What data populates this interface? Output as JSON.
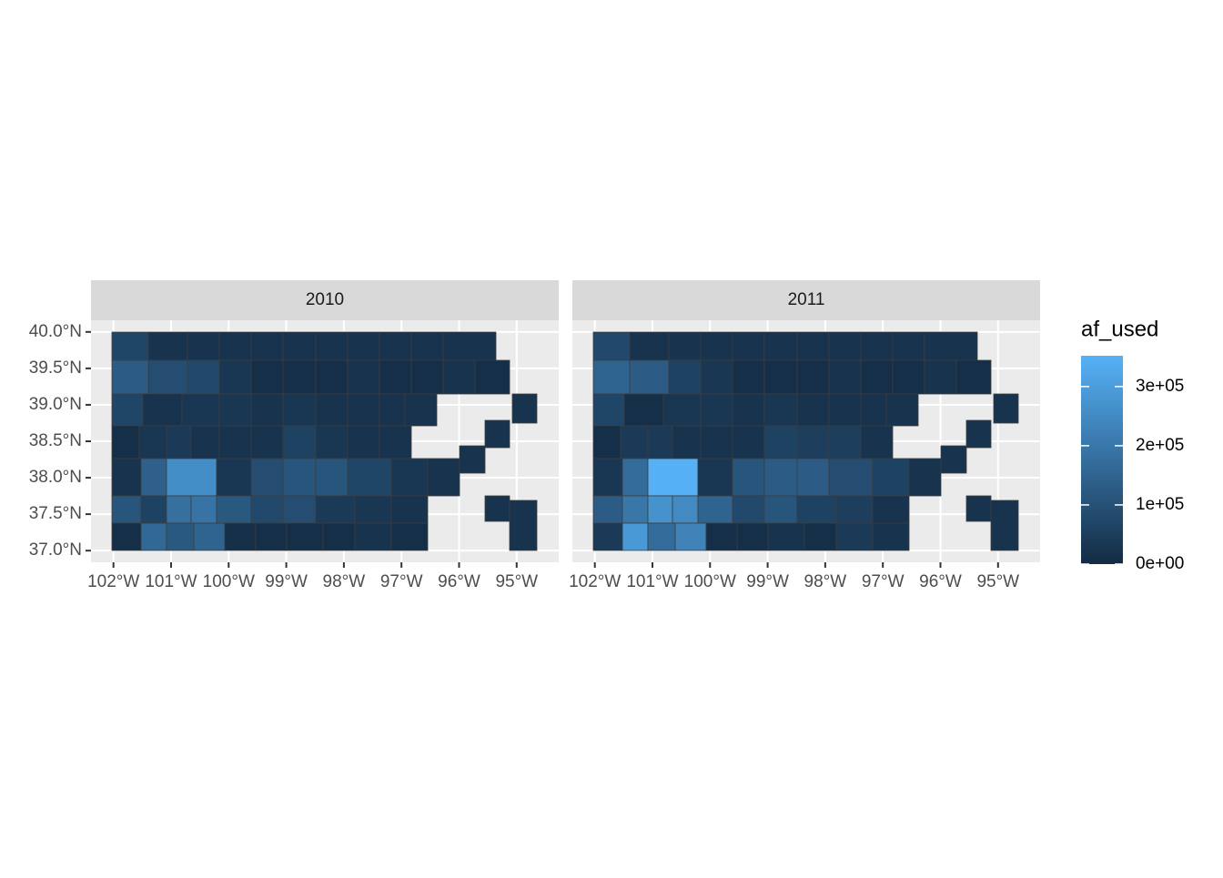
{
  "chart_data": {
    "type": "choropleth",
    "facets": [
      {
        "label": "2010",
        "values": [
          70000,
          20000,
          20000,
          20000,
          20000,
          20000,
          20000,
          20000,
          20000,
          20000,
          20000,
          130000,
          90000,
          80000,
          30000,
          10000,
          10000,
          10000,
          20000,
          10000,
          10000,
          20000,
          10000,
          70000,
          20000,
          30000,
          30000,
          20000,
          30000,
          20000,
          20000,
          20000,
          20000,
          10000,
          30000,
          40000,
          20000,
          20000,
          20000,
          60000,
          30000,
          20000,
          20000,
          20000,
          140000,
          260000,
          30000,
          90000,
          110000,
          110000,
          70000,
          30000,
          20000,
          110000,
          60000,
          180000,
          190000,
          120000,
          80000,
          90000,
          40000,
          30000,
          20000,
          10000,
          160000,
          120000,
          150000,
          10000,
          10000,
          10000,
          10000,
          20000,
          10000,
          20000,
          20000,
          20000,
          20000,
          20000
        ]
      },
      {
        "label": "2011",
        "values": [
          80000,
          20000,
          20000,
          20000,
          20000,
          20000,
          20000,
          20000,
          20000,
          20000,
          20000,
          150000,
          130000,
          60000,
          30000,
          10000,
          10000,
          10000,
          20000,
          10000,
          10000,
          20000,
          10000,
          70000,
          10000,
          30000,
          30000,
          20000,
          30000,
          20000,
          20000,
          20000,
          20000,
          10000,
          40000,
          40000,
          20000,
          20000,
          20000,
          60000,
          50000,
          50000,
          20000,
          30000,
          170000,
          350000,
          30000,
          110000,
          130000,
          130000,
          90000,
          60000,
          20000,
          130000,
          200000,
          270000,
          250000,
          150000,
          80000,
          110000,
          60000,
          50000,
          20000,
          40000,
          290000,
          170000,
          230000,
          10000,
          10000,
          20000,
          10000,
          40000,
          20000,
          20000,
          20000,
          20000,
          20000,
          20000
        ]
      }
    ],
    "xlim": [
      -102.39,
      -94.27
    ],
    "ylim": [
      36.84,
      40.16
    ],
    "xticks": [
      {
        "value": -102,
        "label": "102°W"
      },
      {
        "value": -101,
        "label": "101°W"
      },
      {
        "value": -100,
        "label": "100°W"
      },
      {
        "value": -99,
        "label": "99°W"
      },
      {
        "value": -98,
        "label": "98°W"
      },
      {
        "value": -97,
        "label": "97°W"
      },
      {
        "value": -96,
        "label": "96°W"
      },
      {
        "value": -95,
        "label": "95°W"
      }
    ],
    "yticks": [
      {
        "value": 37,
        "label": "37.0°N"
      },
      {
        "value": 37.5,
        "label": "37.5°N"
      },
      {
        "value": 38,
        "label": "38.0°N"
      },
      {
        "value": 38.5,
        "label": "38.5°N"
      },
      {
        "value": 39,
        "label": "39.0°N"
      },
      {
        "value": 39.5,
        "label": "39.5°N"
      },
      {
        "value": 40,
        "label": "40.0°N"
      }
    ],
    "grid": true,
    "legend": {
      "title": "af_used",
      "lim": [
        0,
        352000
      ],
      "ticks": [
        {
          "value": 0,
          "label": "0e+00"
        },
        {
          "value": 100000,
          "label": "1e+05"
        },
        {
          "value": 200000,
          "label": "2e+05"
        },
        {
          "value": 300000,
          "label": "3e+05"
        }
      ],
      "colors": [
        "#132B43",
        "#56B1F7"
      ]
    }
  }
}
